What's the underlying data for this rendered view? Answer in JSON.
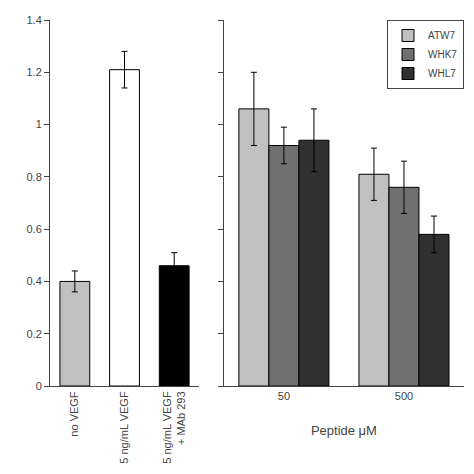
{
  "chart_data": [
    {
      "type": "bar",
      "categories": [
        "no VEGF",
        "5 ng/mL VEGF",
        "5 ng/mL VEGF\n+ MAb 293"
      ],
      "values": [
        0.4,
        1.21,
        0.46
      ],
      "errors": [
        0.04,
        0.07,
        0.05
      ],
      "colors": [
        "#c0c0c0",
        "#ffffff",
        "#000000"
      ],
      "ylim": [
        0,
        1.4
      ],
      "yticks": [
        0,
        0.2,
        0.4,
        0.6,
        0.8,
        1.0,
        1.2,
        1.4
      ],
      "grid": false
    },
    {
      "type": "bar",
      "xlabel": "Peptide μM",
      "categories": [
        "50",
        "500"
      ],
      "series": [
        {
          "name": "ATW7",
          "color": "#c0c0c0",
          "values": [
            1.06,
            0.81
          ],
          "errors": [
            0.14,
            0.1
          ]
        },
        {
          "name": "WHK7",
          "color": "#707070",
          "values": [
            0.92,
            0.76
          ],
          "errors": [
            0.07,
            0.1
          ]
        },
        {
          "name": "WHL7",
          "color": "#303030",
          "values": [
            0.94,
            0.58
          ],
          "errors": [
            0.12,
            0.07
          ]
        }
      ],
      "ylim": [
        0,
        1.4
      ],
      "yticks": [
        0,
        0.2,
        0.4,
        0.6,
        0.8,
        1.0,
        1.2,
        1.4
      ],
      "legend": "upper right",
      "grid": false,
      "tick_labels": "x"
    }
  ]
}
